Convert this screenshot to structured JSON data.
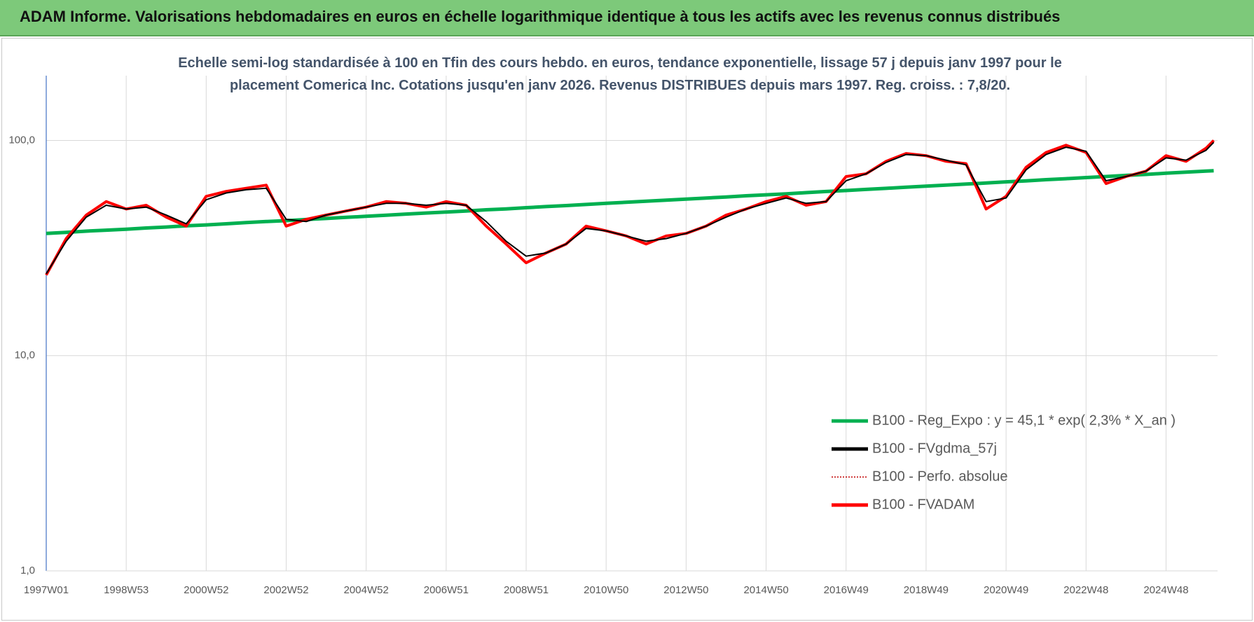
{
  "header": {
    "title": "ADAM Informe. Valorisations hebdomadaires en euros en échelle logarithmique identique à tous les actifs avec les revenus connus distribués"
  },
  "chart_data": {
    "type": "line",
    "title": "Echelle semi-log standardisée à 100 en Tfin des cours hebdo. en euros, tendance exponentielle, lissage 57 j depuis janv 1997 pour le placement Comerica Inc. Cotations jusqu'en janv 2026.  Revenus DISTRIBUES depuis mars 1997. Reg. croiss. : 7,8/20.",
    "x": [
      0,
      26,
      52,
      78,
      104,
      130,
      156,
      182,
      208,
      234,
      260,
      286,
      312,
      338,
      364,
      390,
      416,
      442,
      468,
      494,
      520,
      546,
      572,
      598,
      624,
      650,
      676,
      702,
      728,
      754,
      780,
      806,
      832,
      858,
      884,
      910,
      936,
      962,
      988,
      1014,
      1040,
      1066,
      1092,
      1118,
      1144,
      1170,
      1196,
      1222,
      1248,
      1274,
      1300,
      1326,
      1352,
      1378,
      1404,
      1430,
      1456,
      1482,
      1508,
      1518
    ],
    "xlim": [
      0,
      1523
    ],
    "xticks": [
      {
        "value": 0,
        "label": "1997W01"
      },
      {
        "value": 104,
        "label": "1998W53"
      },
      {
        "value": 208,
        "label": "2000W52"
      },
      {
        "value": 312,
        "label": "2002W52"
      },
      {
        "value": 416,
        "label": "2004W52"
      },
      {
        "value": 520,
        "label": "2006W51"
      },
      {
        "value": 624,
        "label": "2008W51"
      },
      {
        "value": 728,
        "label": "2010W50"
      },
      {
        "value": 832,
        "label": "2012W50"
      },
      {
        "value": 936,
        "label": "2014W50"
      },
      {
        "value": 1040,
        "label": "2016W49"
      },
      {
        "value": 1144,
        "label": "2018W49"
      },
      {
        "value": 1248,
        "label": "2020W49"
      },
      {
        "value": 1352,
        "label": "2022W48"
      },
      {
        "value": 1456,
        "label": "2024W48"
      }
    ],
    "ylim": [
      1,
      200
    ],
    "log_scale": true,
    "yticks": [
      {
        "value": 1,
        "label": "1,0"
      },
      {
        "value": 10,
        "label": "10,0"
      },
      {
        "value": 100,
        "label": "100,0"
      }
    ],
    "grid": true,
    "legend": "lower right",
    "series": [
      {
        "name": "B100 - Reg_Expo : y = 45,1 * exp( 2,3% *  X_an )",
        "color": "#00b050",
        "style": "solid",
        "values": [
          37.0,
          37.4,
          37.9,
          38.3,
          38.7,
          39.2,
          39.6,
          40.1,
          40.5,
          41.0,
          41.5,
          42.0,
          42.4,
          42.9,
          43.4,
          43.9,
          44.4,
          44.9,
          45.5,
          46.0,
          46.5,
          47.0,
          47.6,
          48.1,
          48.7,
          49.3,
          49.8,
          50.4,
          51.0,
          51.6,
          52.2,
          52.8,
          53.4,
          54.0,
          54.6,
          55.3,
          55.9,
          56.5,
          57.2,
          57.9,
          58.5,
          59.2,
          59.9,
          60.6,
          61.3,
          62.0,
          62.7,
          63.4,
          64.2,
          64.9,
          65.7,
          66.4,
          67.2,
          68.0,
          68.8,
          69.5,
          70.4,
          71.2,
          72.0,
          72.3
        ]
      },
      {
        "name": "B100 - FVgdma_57j",
        "color": "#000000",
        "style": "solid",
        "values": [
          24,
          34,
          44,
          50,
          48,
          49,
          45,
          41,
          53,
          57,
          59,
          60,
          43,
          42,
          45,
          47,
          49,
          51,
          51,
          50,
          51,
          50,
          42,
          34,
          29,
          30,
          33,
          39,
          38,
          36,
          34,
          35,
          37,
          40,
          44,
          48,
          51,
          54,
          51,
          52,
          65,
          70,
          79,
          86,
          85,
          81,
          77,
          52,
          54,
          73,
          86,
          93,
          89,
          65,
          68,
          72,
          83,
          81,
          90,
          98
        ]
      },
      {
        "name": "B100 - Perfo. absolue",
        "color": "#c00000",
        "style": "dotted",
        "values": [
          23.7,
          35,
          45,
          52,
          48,
          50,
          44,
          40,
          55,
          58,
          60,
          62,
          40,
          43,
          45,
          47,
          49,
          52,
          51,
          49,
          52,
          50,
          40,
          33,
          27,
          30,
          33,
          40,
          38,
          36,
          33,
          36,
          37,
          40,
          45,
          48,
          52,
          55,
          50,
          52,
          68,
          70,
          80,
          87,
          85,
          80,
          78,
          48,
          55,
          75,
          88,
          95,
          88,
          63,
          68,
          72,
          85,
          80,
          92,
          100
        ]
      },
      {
        "name": "B100 - FVADAM",
        "color": "#ff0000",
        "style": "solid",
        "values": [
          23.7,
          35,
          45,
          52,
          48,
          50,
          44,
          40,
          55,
          58,
          60,
          62,
          40,
          43,
          45,
          47,
          49,
          52,
          51,
          49,
          52,
          50,
          40,
          33,
          27,
          30,
          33,
          40,
          38,
          36,
          33,
          36,
          37,
          40,
          45,
          48,
          52,
          55,
          50,
          52,
          68,
          70,
          80,
          87,
          85,
          80,
          78,
          48,
          55,
          75,
          88,
          95,
          88,
          63,
          68,
          72,
          85,
          80,
          92,
          100
        ]
      }
    ]
  }
}
